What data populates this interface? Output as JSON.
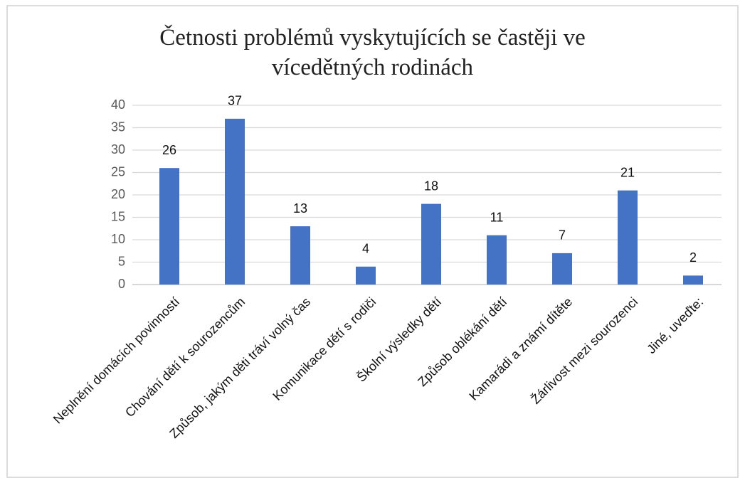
{
  "chart_data": {
    "type": "bar",
    "title": "Četnosti problémů vyskytujících se častěji ve vícedětných rodinách",
    "categories": [
      "Neplnění domácích povinností",
      "Chování dětí k sourozencům",
      "Způsob, jakým děti tráví volný čas",
      "Komunikace dětí s rodiči",
      "Školní výsledky dětí",
      "Způsob oblékání dětí",
      "Kamarádi a známí dítěte",
      "Žárlivost mezi sourozenci",
      "Jiné, uveďte:"
    ],
    "values": [
      26,
      37,
      13,
      4,
      18,
      11,
      7,
      21,
      2
    ],
    "color": "#4472c4",
    "ylim": [
      0,
      40
    ],
    "yticks": [
      0,
      5,
      10,
      15,
      20,
      25,
      30,
      35,
      40
    ],
    "grid": true
  }
}
